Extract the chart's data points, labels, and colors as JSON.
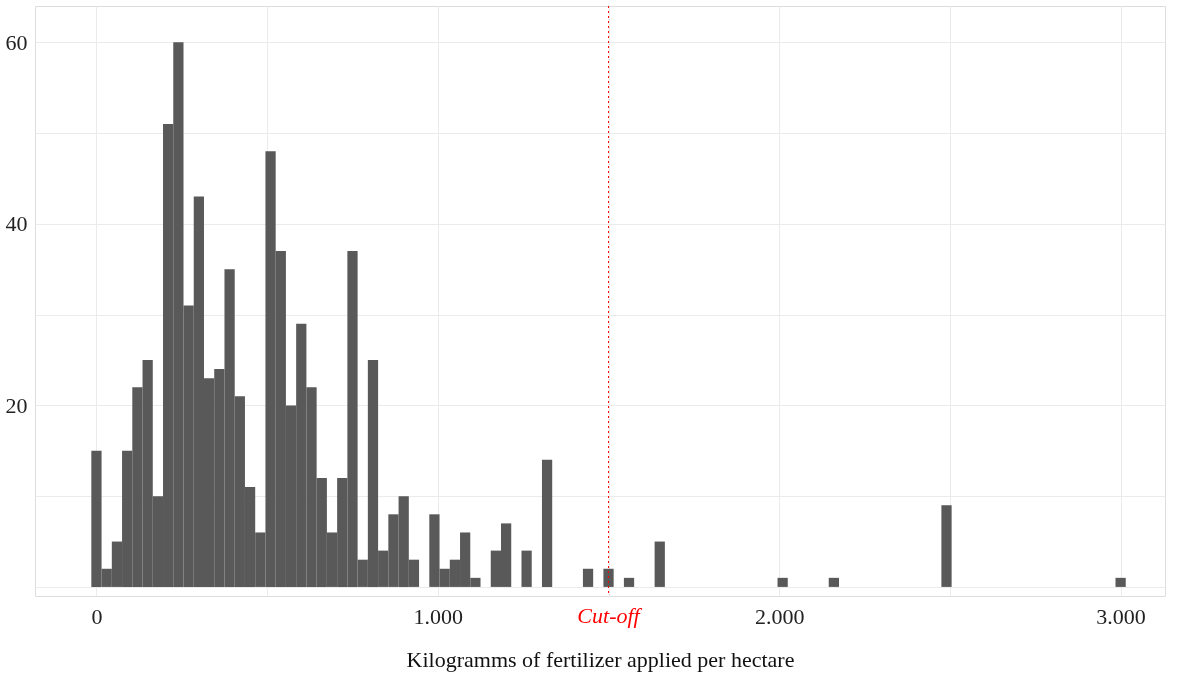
{
  "chart_data": {
    "type": "histogram",
    "xlabel": "Kilogramms of fertilizer applied per hectare",
    "bins": [
      -15,
      15,
      45,
      75,
      105,
      135,
      165,
      195,
      225,
      255,
      285,
      315,
      345,
      375,
      405,
      435,
      465,
      495,
      525,
      555,
      585,
      615,
      645,
      675,
      705,
      735,
      765,
      795,
      825,
      855,
      885,
      915,
      945,
      975,
      1005,
      1035,
      1065,
      1095,
      1125,
      1155,
      1185,
      1215,
      1245,
      1275,
      1305,
      1335,
      1365,
      1395,
      1425,
      1455,
      1485,
      1515,
      1545,
      1575,
      1605,
      1635,
      1665,
      1695,
      1725,
      1755,
      1785,
      1815,
      1845,
      1875,
      1905,
      1935,
      1965,
      1995,
      2025,
      2055,
      2085,
      2115,
      2145,
      2175,
      2205,
      2235,
      2265,
      2295,
      2325,
      2355,
      2385,
      2415,
      2445,
      2475,
      2505,
      2535,
      2565,
      2595,
      2625,
      2655,
      2685,
      2715,
      2745,
      2775,
      2805,
      2835,
      2865,
      2895,
      2925,
      2955,
      2985,
      3015
    ],
    "values": [
      15,
      2,
      5,
      15,
      22,
      25,
      10,
      51,
      60,
      31,
      43,
      23,
      24,
      35,
      21,
      11,
      6,
      48,
      37,
      20,
      29,
      22,
      12,
      6,
      12,
      37,
      3,
      25,
      4,
      8,
      10,
      3,
      0,
      8,
      2,
      3,
      6,
      1,
      0,
      4,
      7,
      0,
      4,
      0,
      14,
      0,
      0,
      0,
      2,
      0,
      2,
      0,
      1,
      0,
      0,
      5,
      0,
      0,
      0,
      0,
      0,
      0,
      0,
      0,
      0,
      0,
      0,
      1,
      0,
      0,
      0,
      0,
      1,
      0,
      0,
      0,
      0,
      0,
      0,
      0,
      0,
      0,
      0,
      9,
      0,
      0,
      0,
      0,
      0,
      0,
      0,
      0,
      0,
      0,
      0,
      0,
      0,
      0,
      0,
      0,
      1
    ],
    "color": "#595959",
    "xlim": [
      -180,
      3130
    ],
    "xticks": [
      0,
      {
        "value": 500,
        "label": null
      },
      {
        "value": 1000,
        "label": "1.000"
      },
      {
        "value": 1500,
        "label": null
      },
      {
        "value": 2000,
        "label": "2.000"
      },
      {
        "value": 2500,
        "label": null
      },
      {
        "value": 3000,
        "label": "3.000"
      }
    ],
    "ylim": [
      -1,
      64
    ],
    "yticks": [
      {
        "value": 0,
        "label": null
      },
      {
        "value": 10,
        "label": null
      },
      20,
      {
        "value": 30,
        "label": null
      },
      40,
      {
        "value": 50,
        "label": null
      },
      60
    ],
    "ref_lines": [
      {
        "axis": "x",
        "value": 1500,
        "label": "Cut-off",
        "color": "#ff0000",
        "line_style": "dotted"
      }
    ],
    "grid": true
  }
}
